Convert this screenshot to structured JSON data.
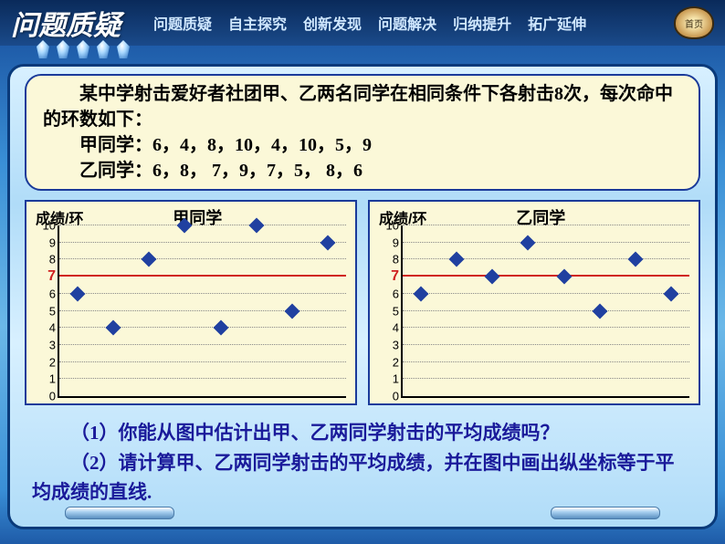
{
  "header": {
    "title": "问题质疑",
    "nav": [
      "问题质疑",
      "自主探究",
      "创新发现",
      "问题解决",
      "归纳提升",
      "拓广延伸"
    ],
    "home_label": "首页"
  },
  "problem": {
    "line1": "某中学射击爱好者社团甲、乙两名同学在相同条件下各射击8次，每次命中的环数如下：",
    "line2": "甲同学：6，4，8，10，4，10，5，9",
    "line3": "乙同学：6，8， 7，9，7，5， 8，6"
  },
  "charts": {
    "ylabel": "成绩/环",
    "ymin": 0,
    "ymax": 10,
    "ytick_step": 1,
    "avg_line_at": 7,
    "highlight_tick": 7,
    "marker_color": "#2040a0",
    "avg_line_color": "#d02020",
    "grid_color": "#888888",
    "background": "#fbf8d8",
    "border_color": "#1a3a9a",
    "a": {
      "title": "甲同学",
      "x": [
        1,
        2,
        3,
        4,
        5,
        6,
        7,
        8
      ],
      "y": [
        6,
        4,
        8,
        10,
        4,
        10,
        5,
        9
      ]
    },
    "b": {
      "title": "乙同学",
      "x": [
        1,
        2,
        3,
        4,
        5,
        6,
        7,
        8
      ],
      "y": [
        6,
        8,
        7,
        9,
        7,
        5,
        8,
        6
      ]
    }
  },
  "questions": {
    "q1": "（1）你能从图中估计出甲、乙两同学射击的平均成绩吗？",
    "q2": "（2）请计算甲、乙两同学射击的平均成绩，并在图中画出纵坐标等于平均成绩的直线."
  }
}
